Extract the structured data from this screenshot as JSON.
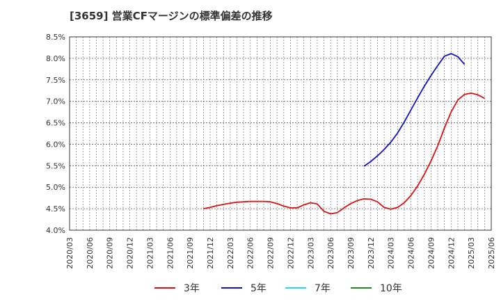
{
  "chart_data": {
    "type": "line",
    "title": "[3659]  営業CFマージンの標準偏差の推移",
    "xlabel": "",
    "ylabel": "",
    "ylim": [
      4.0,
      8.5
    ],
    "yticks": [
      "4.0%",
      "4.5%",
      "5.0%",
      "5.5%",
      "6.0%",
      "6.5%",
      "7.0%",
      "7.5%",
      "8.0%",
      "8.5%"
    ],
    "xticks": [
      "2020/03",
      "2020/06",
      "2020/09",
      "2020/12",
      "2021/03",
      "2021/06",
      "2021/09",
      "2021/12",
      "2022/03",
      "2022/06",
      "2022/09",
      "2022/12",
      "2023/03",
      "2023/06",
      "2023/09",
      "2023/12",
      "2024/03",
      "2024/06",
      "2024/09",
      "2024/12",
      "2025/03",
      "2025/06"
    ],
    "grid": true,
    "legend_position": "bottom",
    "series": [
      {
        "name": "3年",
        "color": "#dd1111",
        "start_month": 20,
        "values": [
          4.5,
          4.53,
          4.57,
          4.6,
          4.63,
          4.65,
          4.66,
          4.67,
          4.67,
          4.67,
          4.66,
          4.62,
          4.56,
          4.52,
          4.52,
          4.59,
          4.64,
          4.61,
          4.44,
          4.38,
          4.41,
          4.52,
          4.62,
          4.69,
          4.73,
          4.72,
          4.66,
          4.53,
          4.49,
          4.53,
          4.64,
          4.81,
          5.03,
          5.3,
          5.61,
          5.96,
          6.38,
          6.75,
          7.03,
          7.16,
          7.19,
          7.15,
          7.07
        ]
      },
      {
        "name": "5年",
        "color": "#1111cc",
        "start_month": 44,
        "values": [
          5.49,
          5.6,
          5.73,
          5.88,
          6.05,
          6.26,
          6.52,
          6.8,
          7.08,
          7.35,
          7.6,
          7.83,
          8.05,
          8.11,
          8.04,
          7.86
        ]
      },
      {
        "name": "7年",
        "color": "#22ddee",
        "start_month": 0,
        "values": []
      },
      {
        "name": "10年",
        "color": "#228822",
        "start_month": 0,
        "values": []
      }
    ]
  }
}
